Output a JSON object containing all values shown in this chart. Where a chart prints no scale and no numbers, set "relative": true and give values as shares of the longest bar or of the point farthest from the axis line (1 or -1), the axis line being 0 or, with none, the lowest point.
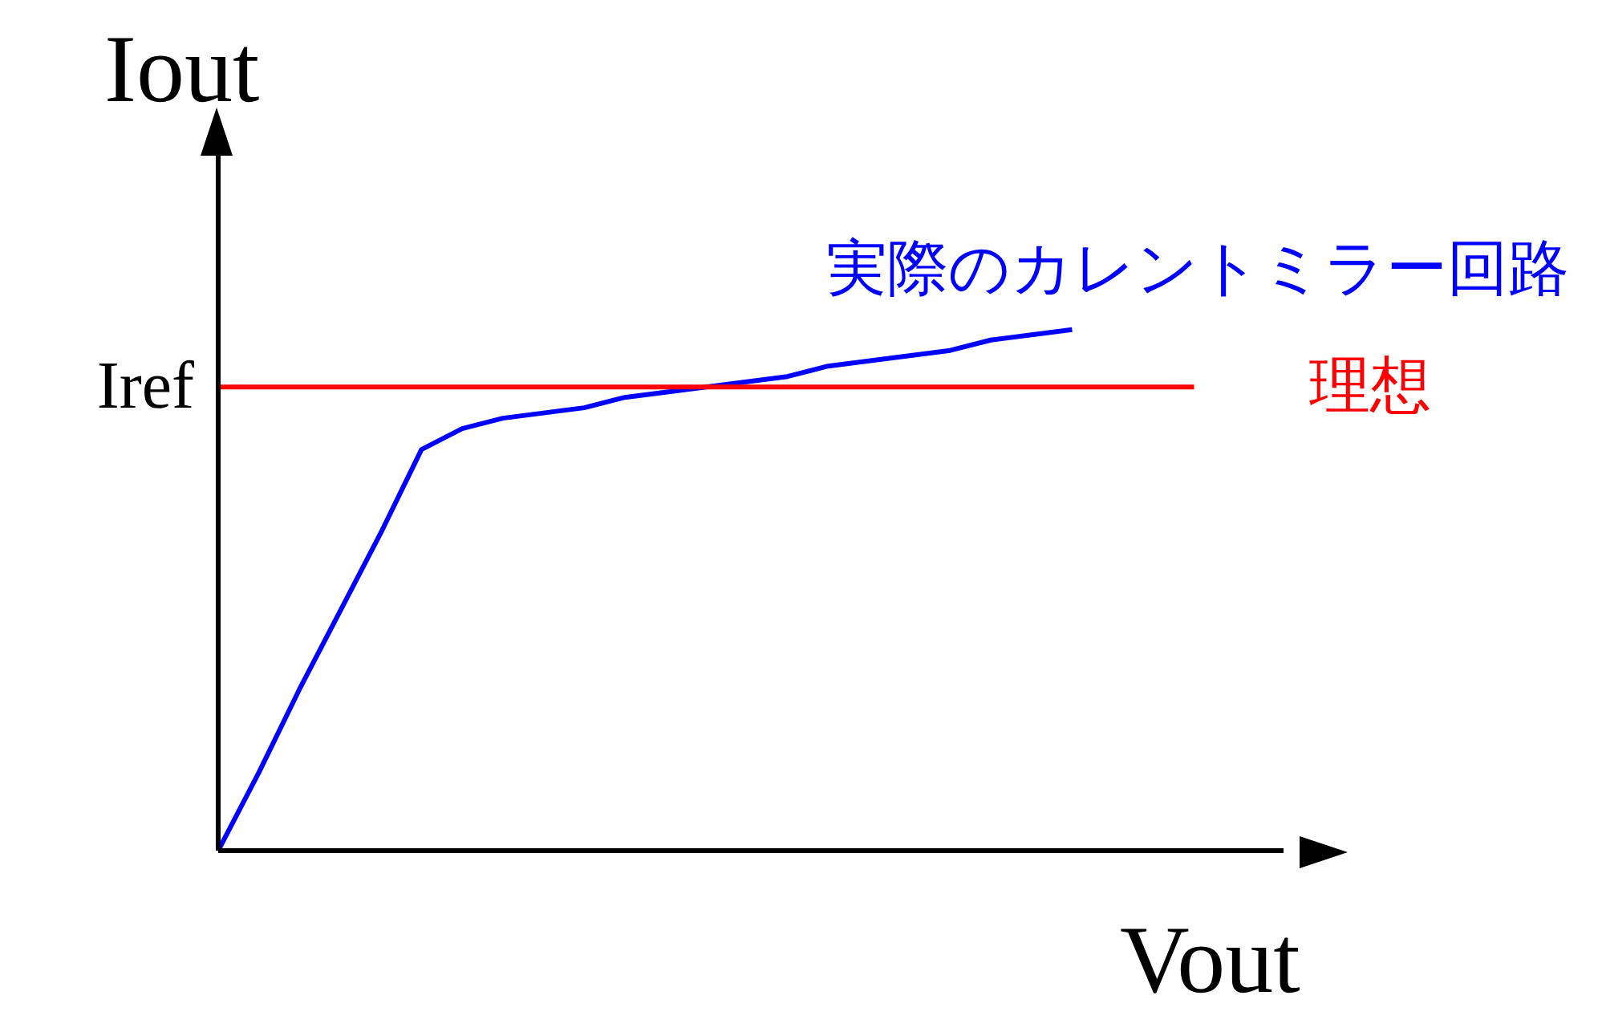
{
  "chart_data": {
    "type": "line",
    "relative": true,
    "xlabel": "Vout",
    "ylabel": "Iout",
    "legend": false,
    "marker": "none",
    "line_style": "solid",
    "categories": [
      null,
      null,
      null,
      null,
      null,
      null,
      null,
      null,
      null,
      null,
      null,
      null,
      null,
      null,
      null,
      null,
      null,
      null,
      null,
      null,
      null,
      null,
      null,
      null,
      null
    ],
    "annotations": [
      "Iref"
    ],
    "series": [
      {
        "name": "実際のカレントミラー回路",
        "color": "#0000ff",
        "values": [
          0,
          0.15,
          0.31,
          0.46,
          0.61,
          0.77,
          0.81,
          0.83,
          0.84,
          0.85,
          0.87,
          0.88,
          0.89,
          0.9,
          0.91,
          0.93,
          0.94,
          0.95,
          0.96,
          0.98,
          0.99,
          1,
          null,
          null,
          null
        ]
      },
      {
        "name": "理想",
        "color": "#ff0000",
        "values": [
          0.89,
          0.89,
          0.89,
          0.89,
          0.89,
          0.89,
          0.89,
          0.89,
          0.89,
          0.89,
          0.89,
          0.89,
          0.89,
          0.89,
          0.89,
          0.89,
          0.89,
          0.89,
          0.89,
          0.89,
          0.89,
          0.89,
          0.89,
          0.89,
          0.89
        ]
      }
    ]
  }
}
